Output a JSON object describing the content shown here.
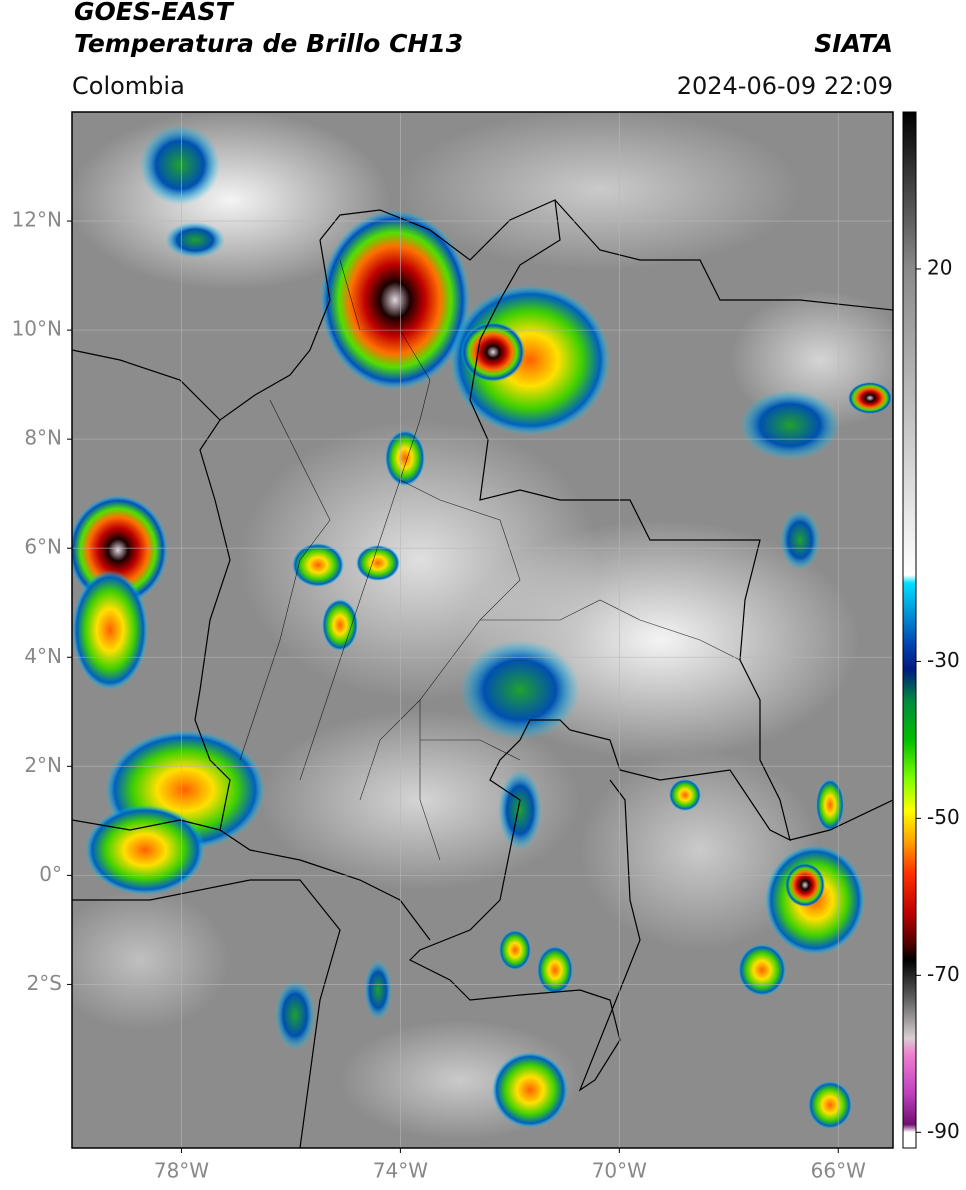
{
  "header": {
    "title_line1": "GOES-EAST",
    "title_line2": "Temperatura de Brillo CH13",
    "source": "SIATA",
    "region": "Colombia",
    "datetime": "2024-06-09 22:09"
  },
  "map": {
    "xlim": [
      -80,
      -65
    ],
    "ylim": [
      -5,
      14
    ],
    "xticks": [
      {
        "value": -78,
        "label": "78°W"
      },
      {
        "value": -74,
        "label": "74°W"
      },
      {
        "value": -70,
        "label": "70°W"
      },
      {
        "value": -66,
        "label": "66°W"
      }
    ],
    "yticks": [
      {
        "value": 12,
        "label": "12°N"
      },
      {
        "value": 10,
        "label": "10°N"
      },
      {
        "value": 8,
        "label": "8°N"
      },
      {
        "value": 6,
        "label": "6°N"
      },
      {
        "value": 4,
        "label": "4°N"
      },
      {
        "value": 2,
        "label": "2°N"
      },
      {
        "value": 0,
        "label": "0°"
      },
      {
        "value": -2,
        "label": "2°S"
      }
    ],
    "grid": true
  },
  "colorbar": {
    "lim": [
      -92,
      40
    ],
    "ticks": [
      20,
      -30,
      -50,
      -70,
      -90
    ],
    "stops": [
      {
        "value": 40,
        "color": "#000000"
      },
      {
        "value": 20,
        "color": "#8a8a8a"
      },
      {
        "value": -19,
        "color": "#ffffff"
      },
      {
        "value": -20,
        "color": "#00e0ff"
      },
      {
        "value": -24,
        "color": "#0090d8"
      },
      {
        "value": -28,
        "color": "#0040b0"
      },
      {
        "value": -31,
        "color": "#001a80"
      },
      {
        "value": -35,
        "color": "#008a40"
      },
      {
        "value": -40,
        "color": "#00c000"
      },
      {
        "value": -45,
        "color": "#80ff00"
      },
      {
        "value": -49,
        "color": "#ffff00"
      },
      {
        "value": -53,
        "color": "#ffa000"
      },
      {
        "value": -57,
        "color": "#ff3000"
      },
      {
        "value": -62,
        "color": "#c00000"
      },
      {
        "value": -66,
        "color": "#500000"
      },
      {
        "value": -68,
        "color": "#000000"
      },
      {
        "value": -73,
        "color": "#606060"
      },
      {
        "value": -78,
        "color": "#d8d0d0"
      },
      {
        "value": -80,
        "color": "#f080d0"
      },
      {
        "value": -85,
        "color": "#c040c0"
      },
      {
        "value": -89,
        "color": "#701070"
      },
      {
        "value": -90,
        "color": "#ffffff"
      },
      {
        "value": -92,
        "color": "#ffffff"
      }
    ]
  }
}
